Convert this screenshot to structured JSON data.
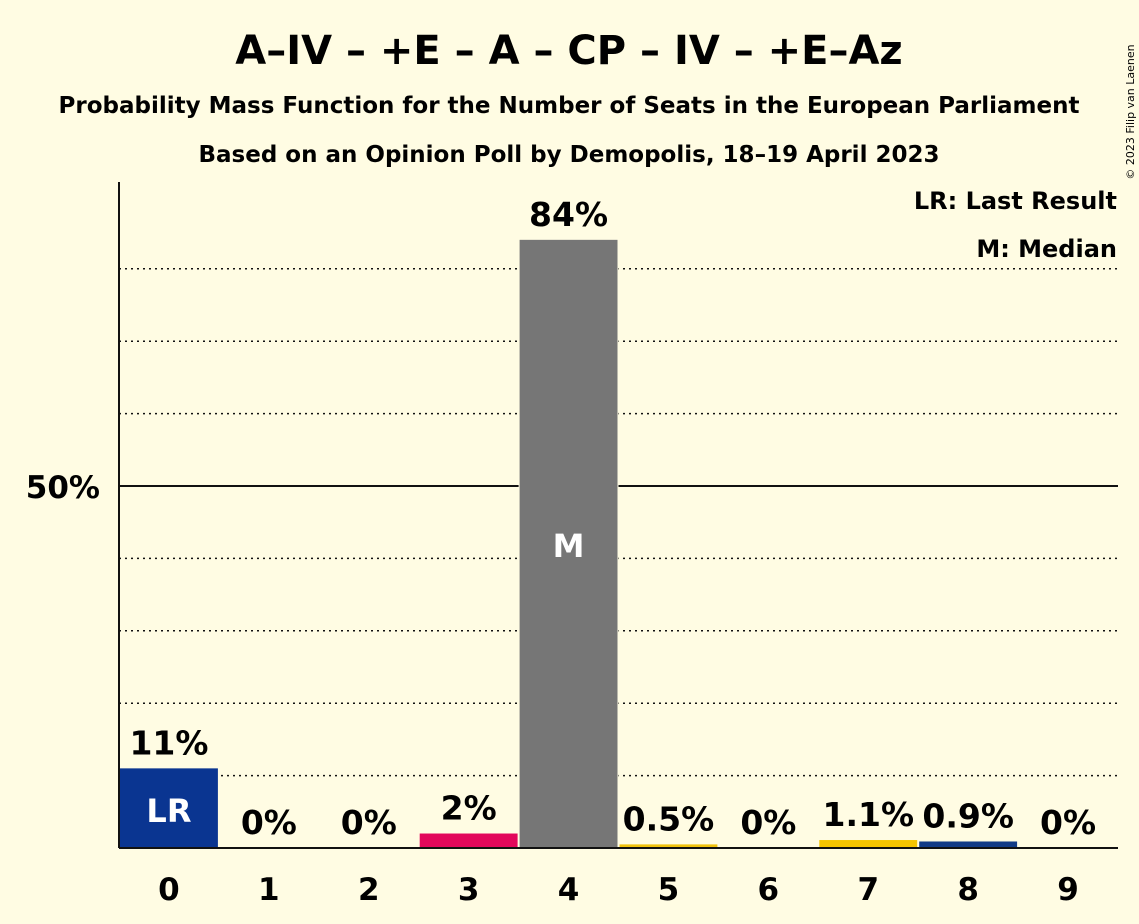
{
  "chart_data": {
    "type": "bar",
    "title": "A–IV – +E – A – CP – IV – +E–Az",
    "subtitle": "Probability Mass Function for the Number of Seats in the European Parliament",
    "subtitle2": "Based on an Opinion Poll by Demopolis, 18–19 April 2023",
    "copyright": "© 2023 Filip van Laenen",
    "legend": [
      "LR: Last Result",
      "M: Median"
    ],
    "categories": [
      "0",
      "1",
      "2",
      "3",
      "4",
      "5",
      "6",
      "7",
      "8",
      "9"
    ],
    "values": [
      11,
      0,
      0,
      2,
      84,
      0.5,
      0,
      1.1,
      0.9,
      0
    ],
    "labels": [
      "11%",
      "0%",
      "0%",
      "2%",
      "84%",
      "0.5%",
      "0%",
      "1.1%",
      "0.9%",
      "0%"
    ],
    "colors": [
      "#0a3591",
      "#0a3591",
      "#0a3591",
      "#e2075b",
      "#767676",
      "#f0c20e",
      "#0a3591",
      "#f5c400",
      "#123b86",
      "#0a3591"
    ],
    "last_result_index": 0,
    "last_result_marker": "LR",
    "median_index": 4,
    "median_marker": "M",
    "ytick_label": "50%",
    "ytick_value": 50,
    "ylim": [
      0,
      92
    ],
    "grid": "dotted every 10%, solid at 50%"
  }
}
